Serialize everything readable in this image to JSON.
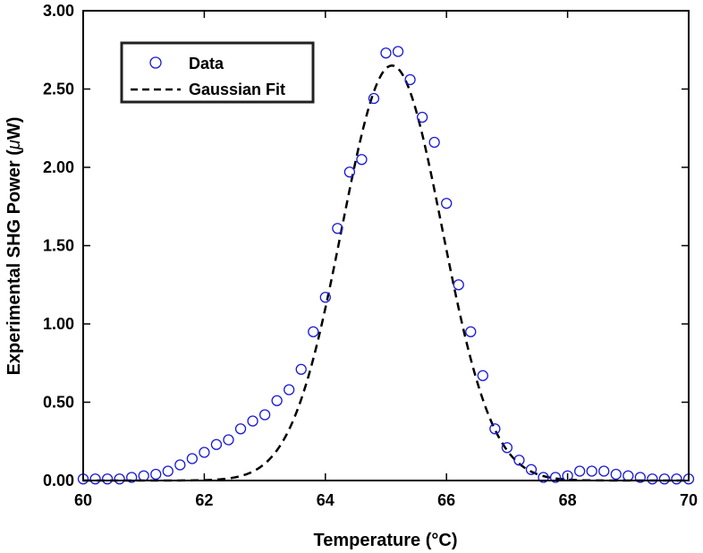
{
  "chart_data": {
    "type": "scatter",
    "title": "",
    "xlabel": "Temperature (°C)",
    "ylabel_main": "Experimental SHG Power (",
    "ylabel_unit": "μ",
    "ylabel_end": "W)",
    "xlim": [
      60,
      70
    ],
    "ylim": [
      0,
      3
    ],
    "xticks": [
      60,
      62,
      64,
      66,
      68,
      70
    ],
    "yticks": [
      0,
      0.5,
      1.0,
      1.5,
      2.0,
      2.5,
      3.0
    ],
    "ytick_labels": [
      "0.00",
      "0.50",
      "1.00",
      "1.50",
      "2.00",
      "2.50",
      "3.00"
    ],
    "grid": false,
    "legend_position": "top-left",
    "colors": {
      "data": "#1a1ad6",
      "fit": "#000000"
    },
    "series": [
      {
        "name": "Data",
        "style": "open-circle",
        "x": [
          60.0,
          60.2,
          60.4,
          60.6,
          60.8,
          61.0,
          61.2,
          61.4,
          61.6,
          61.8,
          62.0,
          62.2,
          62.4,
          62.6,
          62.8,
          63.0,
          63.2,
          63.4,
          63.6,
          63.8,
          64.0,
          64.2,
          64.4,
          64.6,
          64.8,
          65.0,
          65.2,
          65.4,
          65.6,
          65.8,
          66.0,
          66.2,
          66.4,
          66.6,
          66.8,
          67.0,
          67.2,
          67.4,
          67.6,
          67.8,
          68.0,
          68.2,
          68.4,
          68.6,
          68.8,
          69.0,
          69.2,
          69.4,
          69.6,
          69.8,
          70.0
        ],
        "y": [
          0.01,
          0.01,
          0.01,
          0.01,
          0.02,
          0.03,
          0.04,
          0.06,
          0.1,
          0.14,
          0.18,
          0.23,
          0.26,
          0.33,
          0.38,
          0.42,
          0.51,
          0.58,
          0.71,
          0.95,
          1.17,
          1.61,
          1.97,
          2.05,
          2.44,
          2.73,
          2.74,
          2.56,
          2.32,
          2.16,
          1.77,
          1.25,
          0.95,
          0.67,
          0.33,
          0.21,
          0.13,
          0.07,
          0.02,
          0.02,
          0.03,
          0.06,
          0.06,
          0.06,
          0.04,
          0.03,
          0.02,
          0.01,
          0.01,
          0.01,
          0.01
        ]
      },
      {
        "name": "Gaussian Fit",
        "style": "dashed-line",
        "gaussian": {
          "amplitude": 2.65,
          "center": 65.1,
          "sigma": 0.83
        }
      }
    ]
  }
}
